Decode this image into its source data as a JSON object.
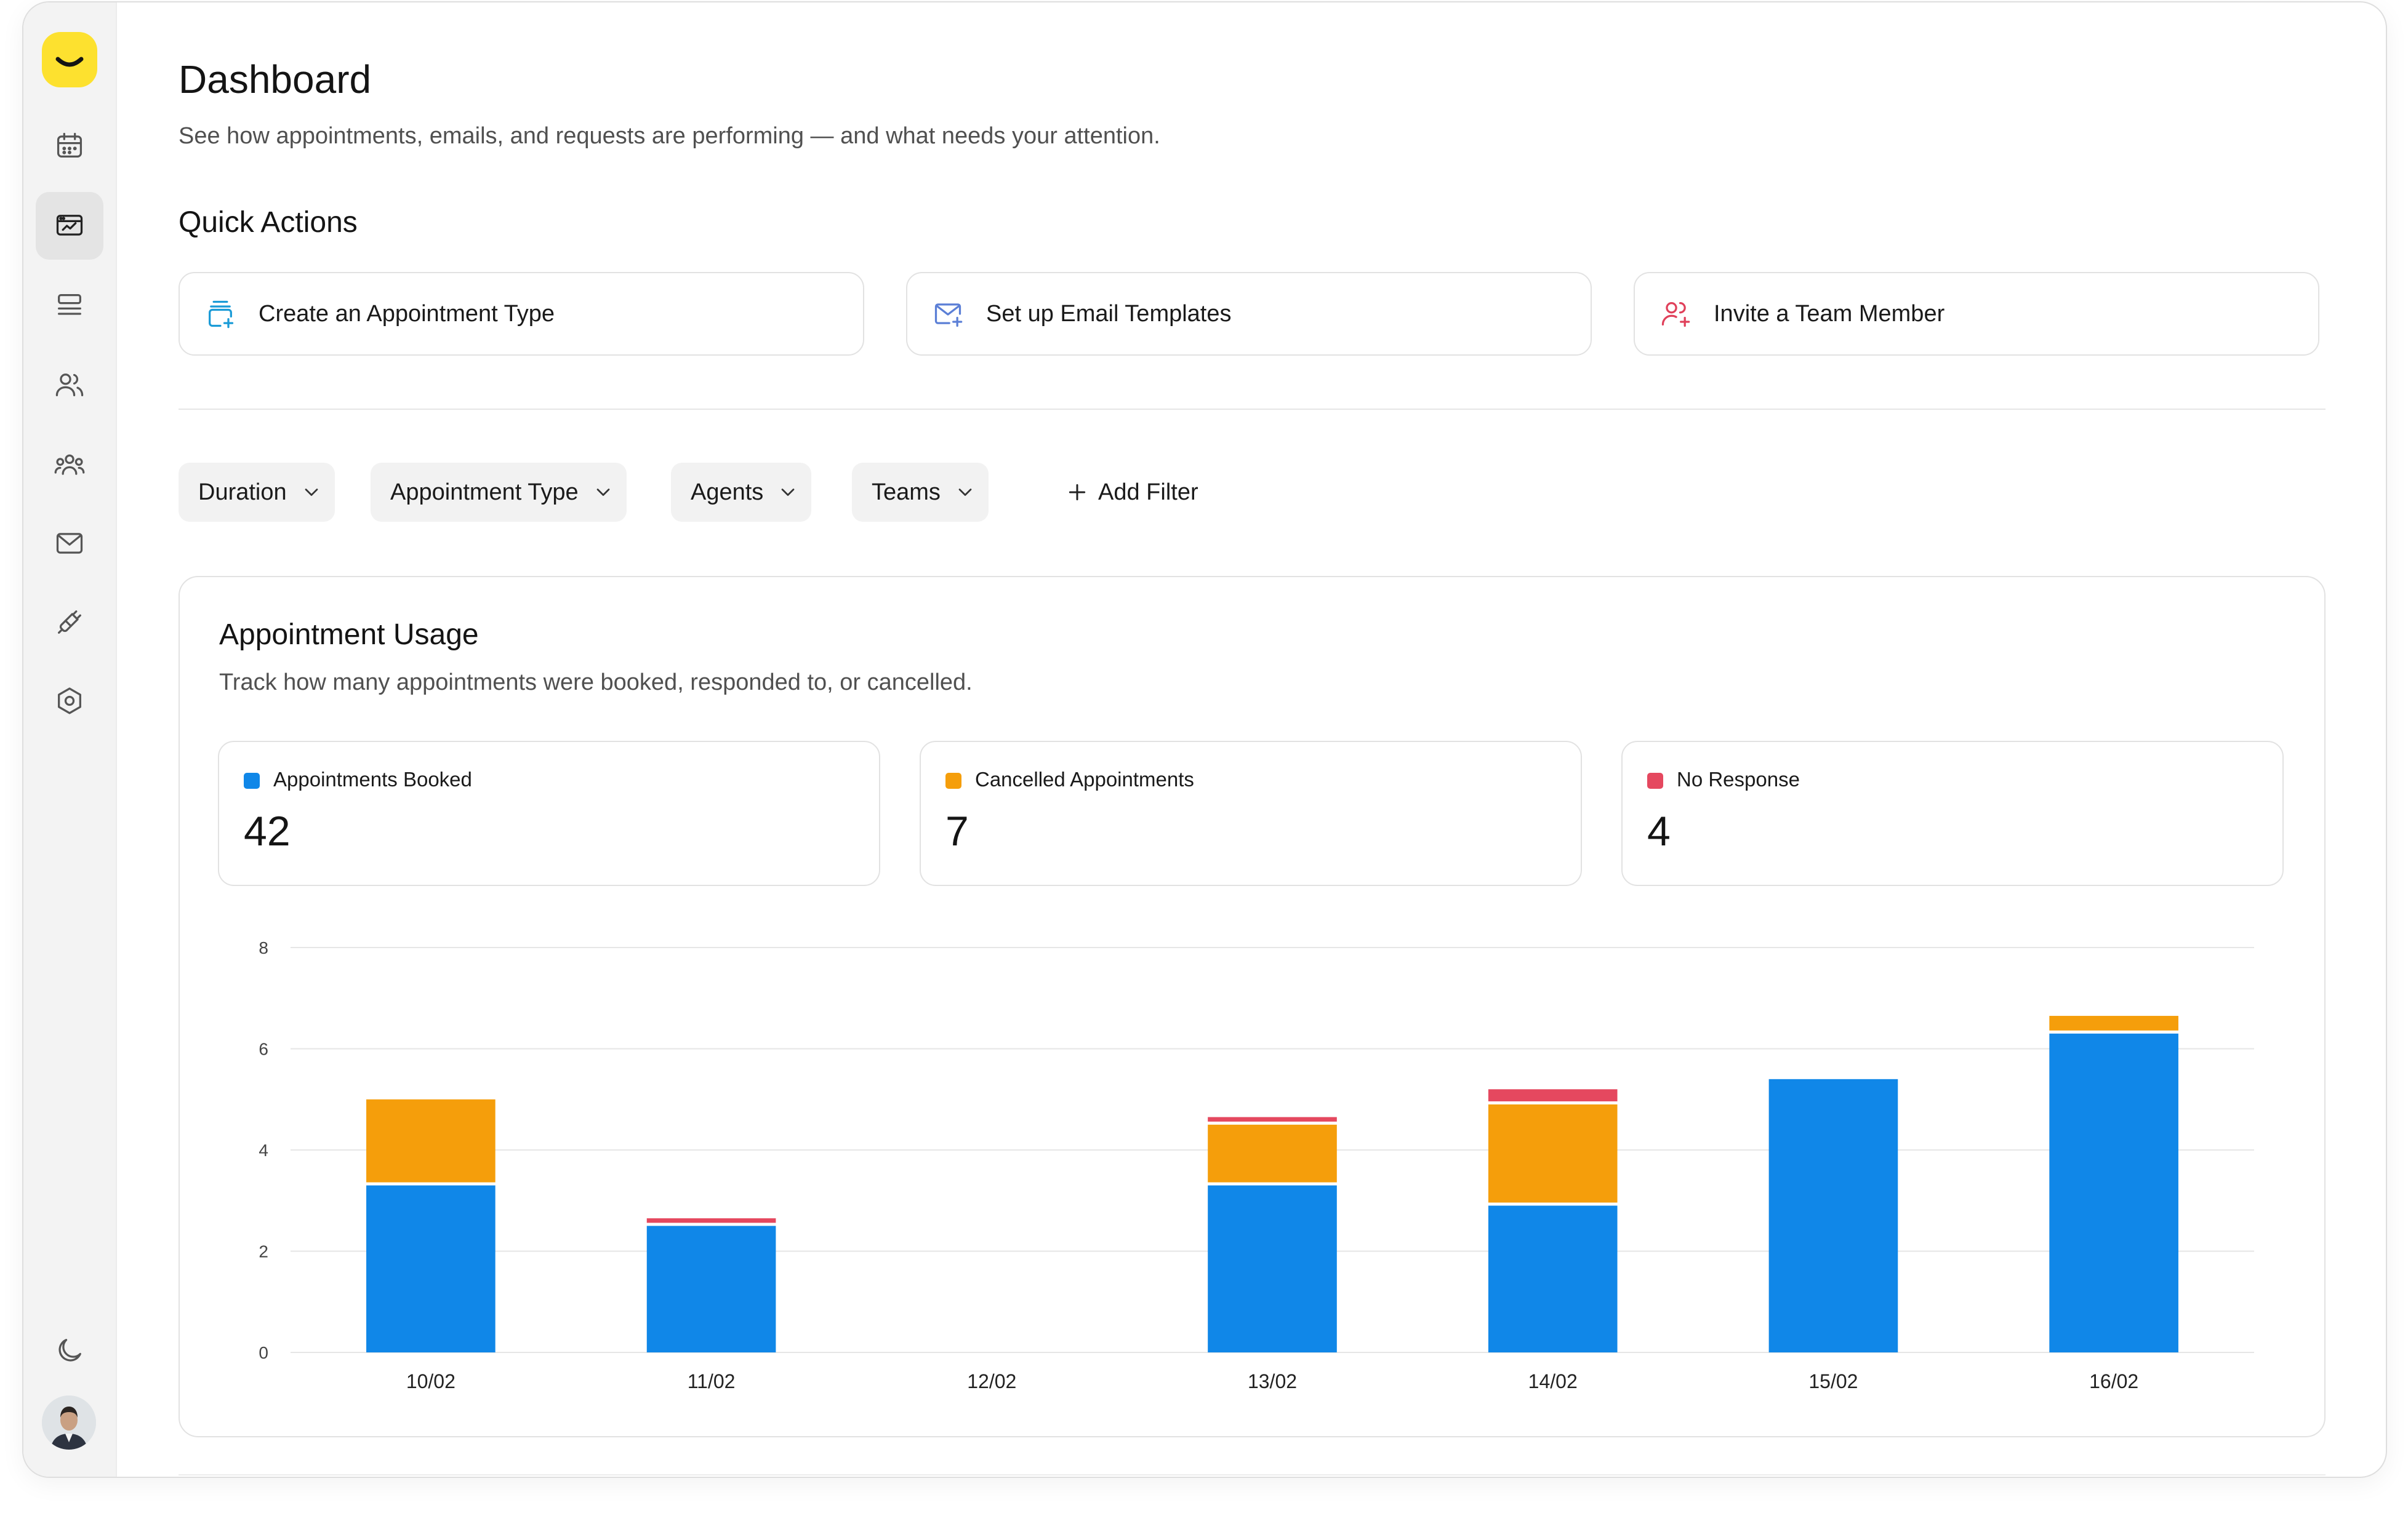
{
  "sidebar": {
    "logo": "smile-logo",
    "items": [
      {
        "icon": "calendar-icon",
        "active": false
      },
      {
        "icon": "dashboard-icon",
        "active": true
      },
      {
        "icon": "list-icon",
        "active": false
      },
      {
        "icon": "users-icon",
        "active": false
      },
      {
        "icon": "teams-icon",
        "active": false
      },
      {
        "icon": "mail-icon",
        "active": false
      },
      {
        "icon": "integrations-icon",
        "active": false
      },
      {
        "icon": "settings-icon",
        "active": false
      }
    ],
    "bottom": {
      "theme_icon": "moon-icon",
      "avatar": "user-avatar"
    }
  },
  "header": {
    "title": "Dashboard",
    "subtitle": "See how appointments, emails, and requests are performing — and what needs your attention."
  },
  "quick_actions": {
    "title": "Quick Actions",
    "items": [
      {
        "label": "Create an Appointment Type",
        "icon": "calendar-add-icon",
        "color": "#1a9bd7"
      },
      {
        "label": "Set up Email Templates",
        "icon": "mail-add-icon",
        "color": "#5b7fd6"
      },
      {
        "label": "Invite a Team Member",
        "icon": "user-add-icon",
        "color": "#e0405a"
      }
    ]
  },
  "filters": {
    "chips": [
      {
        "label": "Duration"
      },
      {
        "label": "Appointment Type"
      },
      {
        "label": "Agents"
      },
      {
        "label": "Teams"
      }
    ],
    "add_label": "Add Filter"
  },
  "usage": {
    "title": "Appointment Usage",
    "subtitle": "Track how many appointments were booked, responded to, or cancelled.",
    "stats": [
      {
        "label": "Appointments Booked",
        "value": "42",
        "color": "#1087e8"
      },
      {
        "label": "Cancelled Appointments",
        "value": "7",
        "color": "#f59e0b"
      },
      {
        "label": "No Response",
        "value": "4",
        "color": "#e5485f"
      }
    ]
  },
  "chart_data": {
    "type": "bar",
    "stacked": true,
    "categories": [
      "10/02",
      "11/02",
      "12/02",
      "13/02",
      "14/02",
      "15/02",
      "16/02"
    ],
    "series": [
      {
        "name": "Appointments Booked",
        "color": "#1087e8",
        "values": [
          3.3,
          2.5,
          0,
          3.3,
          2.9,
          5.4,
          6.3
        ]
      },
      {
        "name": "Cancelled Appointments",
        "color": "#f59e0b",
        "values": [
          1.7,
          0,
          0,
          1.2,
          2.0,
          0,
          0.35
        ]
      },
      {
        "name": "No Response",
        "color": "#e5485f",
        "values": [
          0,
          0.15,
          0,
          0.15,
          0.3,
          0,
          0
        ]
      }
    ],
    "yticks": [
      "0",
      "2",
      "4",
      "6",
      "8"
    ],
    "ylim": [
      0,
      8
    ],
    "grid": true
  }
}
